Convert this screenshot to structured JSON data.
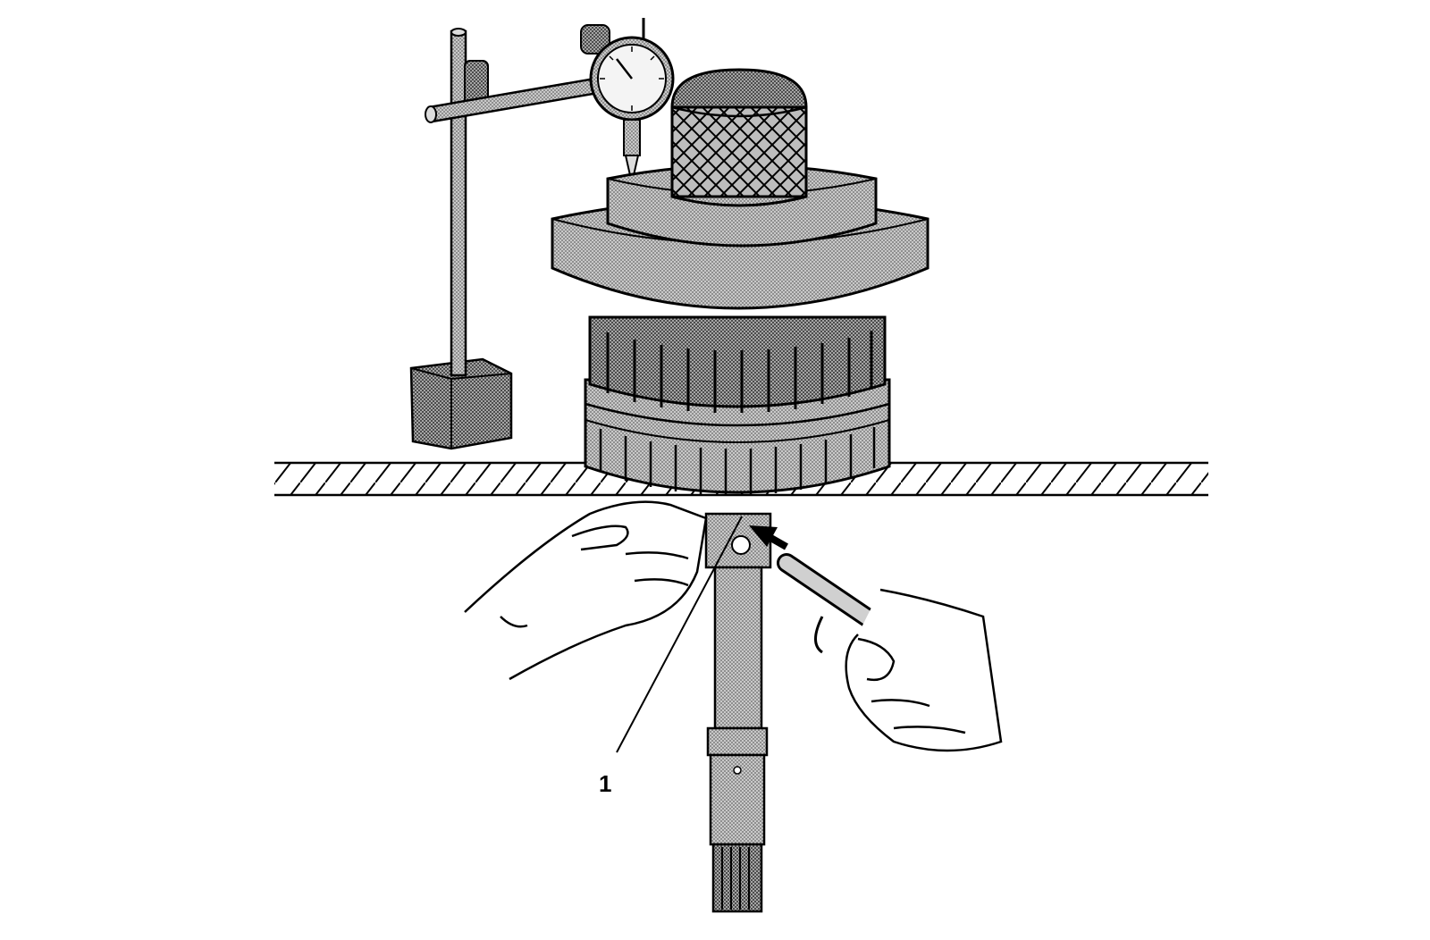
{
  "callouts": [
    {
      "label": "1"
    }
  ],
  "colors": {
    "line": "#000000",
    "background": "#ffffff",
    "shade": "#9a9a9a",
    "shade_light": "#c4c4c4"
  },
  "icons": [
    "dial-indicator-icon",
    "magnetic-base-icon",
    "air-nozzle-icon",
    "pressure-arrow-icon"
  ]
}
